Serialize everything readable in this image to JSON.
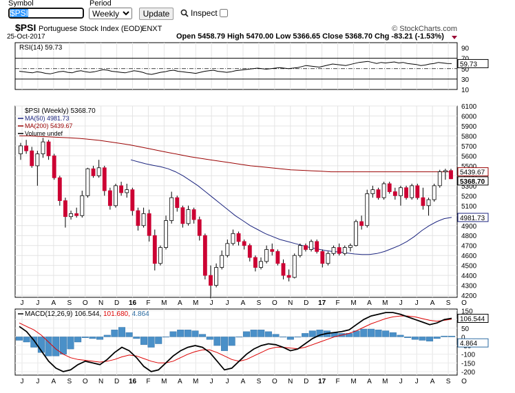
{
  "controls": {
    "symbol_label": "Symbol",
    "symbol_value": "$PSI",
    "period_label": "Period",
    "period_value": "Weekly",
    "update_label": "Update",
    "inspect_label": "Inspect"
  },
  "header": {
    "symbol": "$PSI",
    "name": "Portuguese Stock Index (EOD)",
    "exchange": "ENXT",
    "date": "25-Oct-2017",
    "watermark": "© StockCharts.com",
    "ohlc_text": "Open 5458.79  High 5470.00  Low 5366.65  Close 5368.70  Chg -83.21 (-1.53%)"
  },
  "colors": {
    "up_candle": "#ffffff",
    "down_candle": "#cc0033",
    "ma50": "#1a237e",
    "ma200": "#990000",
    "macd_line": "#000000",
    "signal_line": "#dd0000",
    "histogram": "#4a90c8"
  },
  "chart_data": [
    {
      "type": "line",
      "panel": "rsi",
      "title": "RSI(14) 59.73",
      "ylim": [
        10,
        100
      ],
      "yticks": [
        90,
        70,
        50,
        30,
        10
      ],
      "reference_lines": [
        70,
        30
      ],
      "series": [
        {
          "name": "RSI(14)",
          "values": [
            45,
            44,
            43,
            42,
            44,
            43,
            41,
            40,
            42,
            44,
            45,
            43,
            42,
            45,
            46,
            44,
            43,
            44,
            46,
            48,
            47,
            45,
            44,
            43,
            42,
            44,
            46,
            45,
            43,
            40,
            39,
            41,
            43,
            44,
            46,
            47,
            45,
            44,
            43,
            42,
            41,
            43,
            45,
            46,
            47,
            45,
            44,
            43,
            44,
            46,
            47,
            48,
            49,
            50,
            51,
            50,
            49,
            50,
            51,
            52,
            51,
            50,
            51,
            52,
            54,
            56,
            55,
            54,
            53,
            55,
            57,
            59,
            58,
            57,
            56,
            58,
            60,
            62,
            63,
            64,
            62,
            60,
            62,
            61,
            62,
            63,
            61,
            62,
            60,
            59,
            58,
            56,
            57,
            59,
            60,
            62,
            61,
            60,
            59.73
          ]
        }
      ],
      "last_label": "59.73"
    },
    {
      "type": "candlestick",
      "panel": "price",
      "legend": [
        "$PSI (Weekly) 5368.70",
        "MA(50) 4981.73",
        "MA(200) 5439.67",
        "Volume undef"
      ],
      "ylim": [
        4180,
        6100
      ],
      "yticks": [
        6100,
        6000,
        5900,
        5800,
        5700,
        5600,
        5500,
        5400,
        5300,
        5200,
        5100,
        5000,
        4900,
        4800,
        4700,
        4600,
        4500,
        4400,
        4300,
        4200
      ],
      "candles": [
        [
          5620,
          5730,
          5560,
          5700
        ],
        [
          5700,
          5760,
          5620,
          5650
        ],
        [
          5650,
          5690,
          5480,
          5500
        ],
        [
          5500,
          5650,
          5300,
          5620
        ],
        [
          5620,
          5780,
          5580,
          5740
        ],
        [
          5740,
          5760,
          5560,
          5600
        ],
        [
          5600,
          5620,
          5360,
          5380
        ],
        [
          5380,
          5400,
          5100,
          5150
        ],
        [
          5150,
          5180,
          4880,
          4990
        ],
        [
          4990,
          5050,
          4960,
          5020
        ],
        [
          5020,
          5080,
          4980,
          5000
        ],
        [
          5000,
          5250,
          4980,
          5200
        ],
        [
          5200,
          5480,
          5180,
          5470
        ],
        [
          5470,
          5500,
          5380,
          5400
        ],
        [
          5400,
          5560,
          5380,
          5480
        ],
        [
          5480,
          5500,
          5200,
          5250
        ],
        [
          5250,
          5280,
          5060,
          5100
        ],
        [
          5100,
          5320,
          5080,
          5300
        ],
        [
          5300,
          5340,
          5200,
          5230
        ],
        [
          5230,
          5320,
          5180,
          5260
        ],
        [
          5260,
          5280,
          5000,
          5050
        ],
        [
          5050,
          5080,
          4850,
          4900
        ],
        [
          4900,
          5080,
          4880,
          5020
        ],
        [
          5020,
          5060,
          4740,
          4800
        ],
        [
          4800,
          4860,
          4450,
          4520
        ],
        [
          4520,
          4700,
          4500,
          4680
        ],
        [
          4680,
          5000,
          4660,
          4950
        ],
        [
          4950,
          5240,
          4920,
          5180
        ],
        [
          5180,
          5200,
          5040,
          5080
        ],
        [
          5080,
          5100,
          4880,
          4920
        ],
        [
          4920,
          5100,
          4900,
          5060
        ],
        [
          5060,
          5080,
          4920,
          4960
        ],
        [
          4960,
          4990,
          4750,
          4800
        ],
        [
          4800,
          4820,
          4360,
          4400
        ],
        [
          4400,
          4500,
          4170,
          4300
        ],
        [
          4300,
          4520,
          4280,
          4480
        ],
        [
          4480,
          4650,
          4460,
          4600
        ],
        [
          4600,
          4760,
          4580,
          4720
        ],
        [
          4720,
          4860,
          4700,
          4820
        ],
        [
          4820,
          4840,
          4700,
          4740
        ],
        [
          4740,
          4760,
          4660,
          4700
        ],
        [
          4700,
          4720,
          4540,
          4580
        ],
        [
          4580,
          4600,
          4440,
          4480
        ],
        [
          4480,
          4580,
          4460,
          4540
        ],
        [
          4540,
          4700,
          4520,
          4660
        ],
        [
          4660,
          4720,
          4600,
          4640
        ],
        [
          4640,
          4660,
          4500,
          4520
        ],
        [
          4520,
          4560,
          4360,
          4400
        ],
        [
          4400,
          4460,
          4340,
          4380
        ],
        [
          4380,
          4620,
          4370,
          4600
        ],
        [
          4600,
          4720,
          4580,
          4700
        ],
        [
          4700,
          4720,
          4640,
          4660
        ],
        [
          4660,
          4760,
          4640,
          4740
        ],
        [
          4740,
          4760,
          4620,
          4640
        ],
        [
          4640,
          4660,
          4480,
          4520
        ],
        [
          4520,
          4640,
          4500,
          4620
        ],
        [
          4620,
          4700,
          4600,
          4680
        ],
        [
          4680,
          4720,
          4600,
          4620
        ],
        [
          4620,
          4700,
          4600,
          4680
        ],
        [
          4680,
          4720,
          4640,
          4700
        ],
        [
          4700,
          4960,
          4690,
          4940
        ],
        [
          4940,
          5000,
          4860,
          4900
        ],
        [
          4900,
          5260,
          4880,
          5220
        ],
        [
          5220,
          5300,
          5180,
          5260
        ],
        [
          5260,
          5280,
          5160,
          5180
        ],
        [
          5180,
          5340,
          5160,
          5320
        ],
        [
          5320,
          5340,
          5220,
          5240
        ],
        [
          5240,
          5280,
          5160,
          5200
        ],
        [
          5200,
          5300,
          5100,
          5280
        ],
        [
          5280,
          5300,
          5160,
          5180
        ],
        [
          5180,
          5320,
          5160,
          5300
        ],
        [
          5300,
          5320,
          5160,
          5180
        ],
        [
          5180,
          5280,
          5060,
          5100
        ],
        [
          5100,
          5180,
          5000,
          5160
        ],
        [
          5160,
          5320,
          5140,
          5300
        ],
        [
          5300,
          5460,
          5280,
          5440
        ],
        [
          5440,
          5470,
          5360,
          5452
        ],
        [
          5452,
          5470,
          5366,
          5369
        ]
      ],
      "series": [
        {
          "name": "MA(50)",
          "values": [
            5560,
            5540,
            5520,
            5505,
            5490,
            5470,
            5440,
            5400,
            5350,
            5300,
            5240,
            5180,
            5120,
            5060,
            5000,
            4950,
            4900,
            4860,
            4820,
            4790,
            4760,
            4740,
            4720,
            4700,
            4680,
            4665,
            4650,
            4640,
            4635,
            4625,
            4615,
            4610,
            4610,
            4620,
            4640,
            4670,
            4700,
            4740,
            4790,
            4850,
            4900,
            4940,
            4970,
            4982
          ]
        },
        {
          "name": "MA(200)",
          "values": [
            5800,
            5800,
            5795,
            5790,
            5785,
            5780,
            5775,
            5765,
            5755,
            5740,
            5725,
            5710,
            5690,
            5670,
            5650,
            5630,
            5610,
            5590,
            5575,
            5560,
            5545,
            5530,
            5515,
            5500,
            5490,
            5480,
            5470,
            5460,
            5455,
            5450,
            5445,
            5440,
            5440,
            5440,
            5440,
            5440,
            5440,
            5440,
            5440,
            5440,
            5440,
            5440,
            5440,
            5440
          ]
        }
      ],
      "last_labels": {
        "close": "5368.70",
        "ma200": "5439.67",
        "ma50": "4981.73"
      }
    },
    {
      "type": "line",
      "panel": "macd",
      "title": "MACD(12,26,9) 106.544, 101.680, 4.864",
      "legend": [
        "MACD(12,26,9) 106.544",
        "101.680",
        "4.864"
      ],
      "ylim": [
        -220,
        160
      ],
      "yticks": [
        150,
        100,
        50,
        0,
        -50,
        -100,
        -150,
        -200
      ],
      "series": [
        {
          "name": "MACD",
          "values": [
            60,
            30,
            -20,
            -80,
            -140,
            -180,
            -200,
            -190,
            -160,
            -140,
            -150,
            -160,
            -130,
            -90,
            -60,
            -80,
            -120,
            -170,
            -200,
            -190,
            -150,
            -110,
            -80,
            -60,
            -50,
            -60,
            -90,
            -140,
            -190,
            -180,
            -140,
            -100,
            -70,
            -50,
            -40,
            -45,
            -60,
            -80,
            -70,
            -40,
            -10,
            10,
            20,
            25,
            30,
            40,
            70,
            100,
            120,
            130,
            140,
            140,
            130,
            115,
            100,
            85,
            70,
            80,
            100,
            106.5
          ]
        },
        {
          "name": "Signal",
          "values": [
            80,
            60,
            40,
            10,
            -30,
            -70,
            -100,
            -120,
            -130,
            -135,
            -140,
            -145,
            -140,
            -130,
            -115,
            -105,
            -110,
            -125,
            -140,
            -150,
            -150,
            -140,
            -120,
            -100,
            -85,
            -75,
            -75,
            -90,
            -110,
            -130,
            -140,
            -130,
            -110,
            -90,
            -70,
            -60,
            -60,
            -65,
            -68,
            -60,
            -45,
            -30,
            -15,
            0,
            10,
            20,
            35,
            55,
            75,
            90,
            105,
            115,
            120,
            120,
            115,
            105,
            95,
            90,
            95,
            101.7
          ]
        },
        {
          "name": "Histogram",
          "values": [
            -20,
            -30,
            -60,
            -90,
            -110,
            -110,
            -100,
            -70,
            -30,
            -5,
            -10,
            -15,
            10,
            40,
            55,
            25,
            -10,
            -45,
            -60,
            -40,
            0,
            30,
            40,
            40,
            35,
            15,
            -15,
            -50,
            -80,
            -50,
            0,
            30,
            40,
            40,
            30,
            15,
            0,
            -15,
            -2,
            20,
            35,
            40,
            35,
            25,
            20,
            20,
            35,
            45,
            45,
            40,
            35,
            25,
            10,
            -5,
            -15,
            -20,
            -25,
            -10,
            5,
            4.864
          ]
        }
      ],
      "last_labels": {
        "macd": "106.544",
        "histogram": "4.864"
      }
    }
  ],
  "x_axis_labels": [
    "J",
    "J",
    "A",
    "S",
    "O",
    "N",
    "D",
    "16",
    "F",
    "M",
    "A",
    "M",
    "J",
    "J",
    "A",
    "S",
    "O",
    "N",
    "D",
    "17",
    "F",
    "M",
    "A",
    "M",
    "J",
    "J",
    "A",
    "S",
    "O"
  ]
}
